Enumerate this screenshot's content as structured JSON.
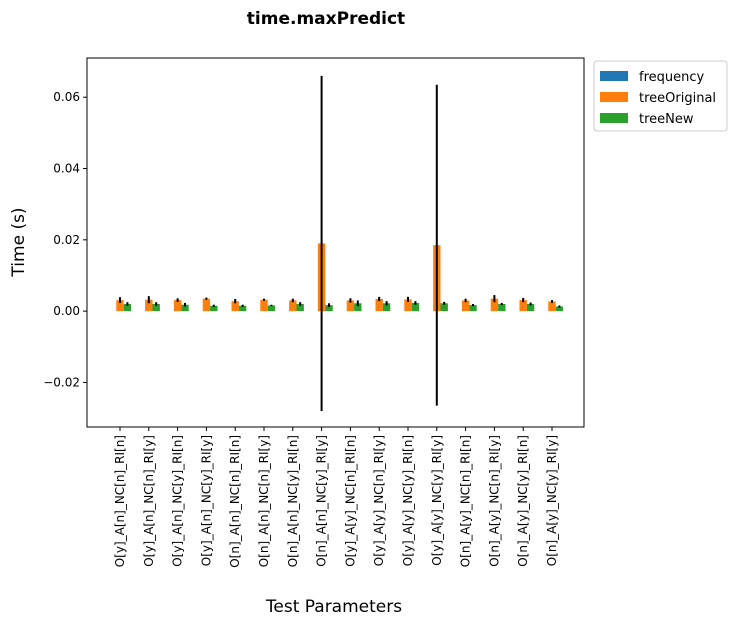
{
  "chart_data": {
    "type": "bar",
    "title": "time.maxPredict",
    "xlabel": "Test Parameters",
    "ylabel": "Time (s)",
    "ylim": [
      -0.0325,
      0.071
    ],
    "yticks": [
      -0.02,
      0.0,
      0.02,
      0.04,
      0.06
    ],
    "ytick_labels": [
      "−0.02",
      "0.00",
      "0.02",
      "0.04",
      "0.06"
    ],
    "grid": false,
    "legend_position": "outside-top-right",
    "categories": [
      "O[y]_A[n]_NC[n]_RI[n]",
      "O[y]_A[n]_NC[n]_RI[y]",
      "O[y]_A[n]_NC[y]_RI[n]",
      "O[y]_A[n]_NC[y]_RI[y]",
      "O[n]_A[n]_NC[n]_RI[n]",
      "O[n]_A[n]_NC[n]_RI[y]",
      "O[n]_A[n]_NC[y]_RI[n]",
      "O[n]_A[n]_NC[y]_RI[y]",
      "O[y]_A[y]_NC[n]_RI[n]",
      "O[y]_A[y]_NC[n]_RI[y]",
      "O[y]_A[y]_NC[y]_RI[n]",
      "O[y]_A[y]_NC[y]_RI[y]",
      "O[n]_A[y]_NC[n]_RI[n]",
      "O[n]_A[y]_NC[n]_RI[y]",
      "O[n]_A[y]_NC[y]_RI[n]",
      "O[n]_A[y]_NC[y]_RI[y]"
    ],
    "series": [
      {
        "name": "frequency",
        "color": "#1f77b4",
        "values": [
          0,
          0,
          0,
          0,
          0,
          0,
          0,
          0,
          0,
          0,
          0,
          0,
          0,
          0,
          0,
          0
        ],
        "errors": [
          0,
          0,
          0,
          0,
          0,
          0,
          0,
          0,
          0,
          0,
          0,
          0,
          0,
          0,
          0,
          0
        ]
      },
      {
        "name": "treeOriginal",
        "color": "#ff7f0e",
        "values": [
          0.0031,
          0.0032,
          0.0031,
          0.0035,
          0.0028,
          0.0032,
          0.003,
          0.019,
          0.003,
          0.0034,
          0.0033,
          0.0185,
          0.003,
          0.0035,
          0.0031,
          0.0027
        ],
        "errors": [
          0.0008,
          0.001,
          0.0005,
          0.0003,
          0.0006,
          0.0003,
          0.0005,
          0.047,
          0.0006,
          0.0006,
          0.0007,
          0.045,
          0.0005,
          0.001,
          0.0006,
          0.0004
        ]
      },
      {
        "name": "treeNew",
        "color": "#2ca02c",
        "values": [
          0.002,
          0.002,
          0.0018,
          0.0015,
          0.0015,
          0.0016,
          0.002,
          0.0017,
          0.0022,
          0.0022,
          0.0023,
          0.0022,
          0.0017,
          0.002,
          0.002,
          0.0013
        ],
        "errors": [
          0.0005,
          0.0005,
          0.0005,
          0.0003,
          0.0003,
          0.0002,
          0.0005,
          0.0005,
          0.0008,
          0.0006,
          0.0005,
          0.0004,
          0.0003,
          0.0003,
          0.0004,
          0.0003
        ]
      }
    ]
  }
}
